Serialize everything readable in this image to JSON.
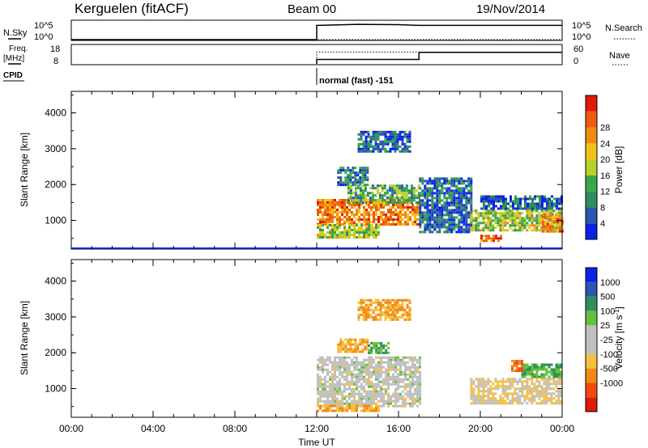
{
  "header": {
    "title": "Kerguelen (fitACF)",
    "beam": "Beam 00",
    "date": "19/Nov/2014"
  },
  "strips": {
    "sky_label": "N.Sky",
    "search_label": "N.Search",
    "freq_label": "Freq.",
    "freq_unit": "[MHz]",
    "nave_label": "Nave",
    "cpid_label": "CPID",
    "sky_ticks": [
      "10^5",
      "10^0"
    ],
    "search_ticks": [
      "10^5",
      "10^0"
    ],
    "freq_ticks": [
      "18",
      "8"
    ],
    "nave_ticks": [
      "60",
      "0"
    ],
    "cpid_text": "normal (fast) -151"
  },
  "xaxis": {
    "label": "Time UT",
    "ticks": [
      "00:00",
      "04:00",
      "08:00",
      "12:00",
      "16:00",
      "20:00",
      "00:00"
    ]
  },
  "colors": {
    "power": [
      "#0a22e6",
      "#2a56b0",
      "#2e8f5a",
      "#3aa84a",
      "#b4d22a",
      "#f2c21a",
      "#f08a14",
      "#ee5a10",
      "#e01a0a"
    ],
    "velocity": [
      "#e01a0a",
      "#f04a10",
      "#f08a14",
      "#f4c040",
      "#bfbfbf",
      "#bfbfbf",
      "#66c040",
      "#2e8f5a",
      "#2a56b0",
      "#0a22e6"
    ]
  },
  "chart_data": [
    {
      "type": "line",
      "title": "N.Sky / N.Search",
      "x_unit": "hours UT",
      "xlim": [
        0,
        24
      ],
      "series": [
        {
          "name": "N.Sky",
          "style": "solid",
          "x": [
            0,
            12,
            12,
            12.1,
            14,
            16,
            17,
            20,
            24
          ],
          "y_log10": [
            0,
            0,
            4.0,
            4.0,
            4.3,
            4.2,
            4.0,
            4.0,
            4.0
          ]
        },
        {
          "name": "N.Search",
          "style": "dotted",
          "x": [
            0,
            24
          ],
          "y_log10": [
            0,
            0
          ]
        }
      ]
    },
    {
      "type": "line",
      "title": "Freq. / Nave",
      "x_unit": "hours UT",
      "xlim": [
        0,
        24
      ],
      "series": [
        {
          "name": "Freq.",
          "style": "solid",
          "unit": "MHz",
          "ylim": [
            8,
            18
          ],
          "x": [
            12,
            12,
            17,
            17,
            24
          ],
          "y": [
            8,
            10.5,
            10.5,
            14.5,
            14.5
          ]
        },
        {
          "name": "Nave",
          "style": "dotted",
          "ylim": [
            0,
            60
          ],
          "x": [
            12,
            12,
            24
          ],
          "y": [
            0,
            40,
            40
          ]
        }
      ]
    },
    {
      "type": "heatmap",
      "ylabel": "Slant Range [km]",
      "xlabel": "Time UT",
      "xlim": [
        0,
        24
      ],
      "ylim": [
        200,
        4600
      ],
      "yticks": [
        1000,
        2000,
        3000,
        4000
      ],
      "colorbar": {
        "label": "Power [dB]",
        "ticks": [
          4,
          8,
          12,
          16,
          20,
          24,
          28
        ],
        "range": [
          0,
          32
        ]
      },
      "echo_regions": [
        {
          "t0": 12.0,
          "t1": 17.0,
          "r0": 900,
          "r1": 1600,
          "value": 24
        },
        {
          "t0": 12.0,
          "t1": 15.0,
          "r0": 550,
          "r1": 900,
          "value": 16
        },
        {
          "t0": 13.5,
          "t1": 17.0,
          "r0": 1500,
          "r1": 2000,
          "value": 12
        },
        {
          "t0": 13.0,
          "t1": 14.5,
          "r0": 2000,
          "r1": 2500,
          "value": 8
        },
        {
          "t0": 14.0,
          "t1": 16.5,
          "r0": 2900,
          "r1": 3500,
          "value": 6
        },
        {
          "t0": 17.0,
          "t1": 19.5,
          "r0": 700,
          "r1": 2200,
          "value": 6
        },
        {
          "t0": 19.5,
          "t1": 24.0,
          "r0": 700,
          "r1": 1300,
          "value": 16
        },
        {
          "t0": 23.0,
          "t1": 24.0,
          "r0": 700,
          "r1": 1200,
          "value": 24
        },
        {
          "t0": 20.0,
          "t1": 24.0,
          "r0": 1300,
          "r1": 1700,
          "value": 6
        },
        {
          "t0": 20.0,
          "t1": 21.0,
          "r0": 400,
          "r1": 600,
          "value": 26
        }
      ]
    },
    {
      "type": "heatmap",
      "ylabel": "Slant Range [km]",
      "xlabel": "Time UT",
      "xlim": [
        0,
        24
      ],
      "ylim": [
        200,
        4600
      ],
      "yticks": [
        1000,
        2000,
        3000,
        4000
      ],
      "colorbar": {
        "label": "Velocity [m s^-1]",
        "ticks": [
          1000,
          500,
          100,
          25,
          -25,
          -100,
          -500,
          -1000
        ]
      },
      "echo_regions": [
        {
          "t0": 12.0,
          "t1": 17.0,
          "r0": 500,
          "r1": 1900,
          "value": 0
        },
        {
          "t0": 13.0,
          "t1": 14.5,
          "r0": 2000,
          "r1": 2400,
          "value": -100
        },
        {
          "t0": 14.5,
          "t1": 15.5,
          "r0": 2000,
          "r1": 2300,
          "value": 100
        },
        {
          "t0": 14.0,
          "t1": 16.5,
          "r0": 2900,
          "r1": 3500,
          "value": -100
        },
        {
          "t0": 19.5,
          "t1": 24.0,
          "r0": 600,
          "r1": 1300,
          "value": -25
        },
        {
          "t0": 22.0,
          "t1": 24.0,
          "r0": 1300,
          "r1": 1700,
          "value": 100
        },
        {
          "t0": 21.5,
          "t1": 22.0,
          "r0": 1500,
          "r1": 1800,
          "value": -500
        },
        {
          "t0": 12.0,
          "t1": 15.0,
          "r0": 400,
          "r1": 550,
          "value": -100
        }
      ]
    }
  ]
}
